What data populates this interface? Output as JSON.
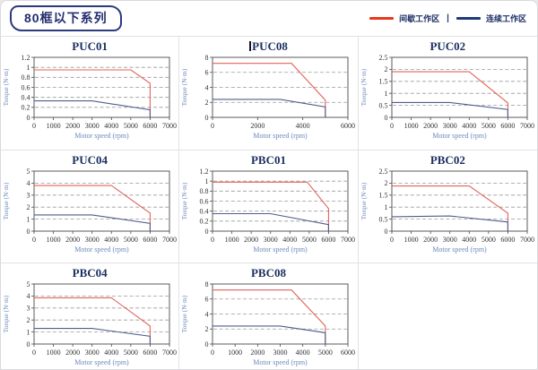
{
  "page": {
    "title": "80框以下系列",
    "legend": {
      "items": [
        {
          "label": "间歇工作区",
          "color": "#e8391d"
        },
        {
          "label": "连续工作区",
          "color": "#1e3a78"
        }
      ],
      "separator": "|"
    }
  },
  "colors": {
    "intermittent_line": "#e2635a",
    "continuous_line": "#4f5d8d",
    "grid_dash": "#9a9a9a",
    "axis_frame": "#4a4a4a",
    "tick_label": "#333333",
    "axis_title": "#6c88bd",
    "chart_title": "#1a2f5e",
    "cell_border": "#e2e2e7"
  },
  "chart_data": [
    {
      "type": "line",
      "title": "PUC01",
      "title_cursor": false,
      "xlabel": "Motor speed (rpm)",
      "ylabel": "Torque (N·m)",
      "xlim": [
        0,
        7000
      ],
      "xticks": [
        0,
        1000,
        2000,
        3000,
        4000,
        5000,
        6000,
        7000
      ],
      "ylim": [
        0,
        1.2
      ],
      "yticks": [
        0,
        0.2,
        0.4,
        0.6,
        0.8,
        1,
        1.2
      ],
      "grid": "horizontal-dashed",
      "legend_position": "none",
      "series": [
        {
          "name": "间歇工作区",
          "role": "intermittent",
          "points": [
            [
              0,
              0.95
            ],
            [
              5000,
              0.95
            ],
            [
              6000,
              0.68
            ],
            [
              6000,
              0
            ]
          ]
        },
        {
          "name": "连续工作区",
          "role": "continuous",
          "points": [
            [
              0,
              0.33
            ],
            [
              3000,
              0.33
            ],
            [
              6000,
              0.15
            ],
            [
              6000,
              0
            ]
          ]
        }
      ]
    },
    {
      "type": "line",
      "title": "PUC08",
      "title_cursor": true,
      "xlabel": "Motor speed (rpm)",
      "ylabel": "Torque (N·m)",
      "xlim": [
        0,
        6000
      ],
      "xticks": [
        0,
        2000,
        4000,
        6000
      ],
      "ylim": [
        0,
        8
      ],
      "yticks": [
        0,
        2,
        4,
        6,
        8
      ],
      "grid": "horizontal-dashed",
      "legend_position": "none",
      "series": [
        {
          "name": "间歇工作区",
          "role": "intermittent",
          "points": [
            [
              0,
              7.2
            ],
            [
              3500,
              7.2
            ],
            [
              5000,
              2.3
            ],
            [
              5000,
              0
            ]
          ]
        },
        {
          "name": "连续工作区",
          "role": "continuous",
          "points": [
            [
              0,
              2.4
            ],
            [
              3000,
              2.4
            ],
            [
              5000,
              1.4
            ],
            [
              5000,
              0
            ]
          ]
        }
      ]
    },
    {
      "type": "line",
      "title": "PUC02",
      "title_cursor": false,
      "xlabel": "Motor speed (rpm)",
      "ylabel": "Torque (N·m)",
      "xlim": [
        0,
        7000
      ],
      "xticks": [
        0,
        1000,
        2000,
        3000,
        4000,
        5000,
        6000,
        7000
      ],
      "ylim": [
        0,
        2.5
      ],
      "yticks": [
        0,
        0.5,
        1,
        1.5,
        2,
        2.5
      ],
      "grid": "horizontal-dashed",
      "legend_position": "none",
      "series": [
        {
          "name": "间歇工作区",
          "role": "intermittent",
          "points": [
            [
              0,
              1.9
            ],
            [
              4000,
              1.9
            ],
            [
              6000,
              0.6
            ],
            [
              6000,
              0
            ]
          ]
        },
        {
          "name": "连续工作区",
          "role": "continuous",
          "points": [
            [
              0,
              0.62
            ],
            [
              3000,
              0.62
            ],
            [
              6000,
              0.33
            ],
            [
              6000,
              0
            ]
          ]
        }
      ]
    },
    {
      "type": "line",
      "title": "PUC04",
      "title_cursor": false,
      "xlabel": "Motor speed (rpm)",
      "ylabel": "Torque (N·m)",
      "xlim": [
        0,
        7000
      ],
      "xticks": [
        0,
        1000,
        2000,
        3000,
        4000,
        5000,
        6000,
        7000
      ],
      "ylim": [
        0,
        5
      ],
      "yticks": [
        0,
        1,
        2,
        3,
        4,
        5
      ],
      "grid": "horizontal-dashed",
      "legend_position": "none",
      "series": [
        {
          "name": "间歇工作区",
          "role": "intermittent",
          "points": [
            [
              0,
              3.8
            ],
            [
              4000,
              3.8
            ],
            [
              6000,
              1.5
            ],
            [
              6000,
              0
            ]
          ]
        },
        {
          "name": "连续工作区",
          "role": "continuous",
          "points": [
            [
              0,
              1.35
            ],
            [
              3000,
              1.35
            ],
            [
              6000,
              0.65
            ],
            [
              6000,
              0
            ]
          ]
        }
      ]
    },
    {
      "type": "line",
      "title": "PBC01",
      "title_cursor": false,
      "xlabel": "Motor speed (rpm)",
      "ylabel": "Torque (N·m)",
      "xlim": [
        0,
        7000
      ],
      "xticks": [
        0,
        1000,
        2000,
        3000,
        4000,
        5000,
        6000,
        7000
      ],
      "ylim": [
        0,
        1.2
      ],
      "yticks": [
        0,
        0.2,
        0.4,
        0.6,
        0.8,
        1,
        1.2
      ],
      "grid": "horizontal-dashed",
      "legend_position": "none",
      "series": [
        {
          "name": "间歇工作区",
          "role": "intermittent",
          "points": [
            [
              0,
              0.98
            ],
            [
              4900,
              0.98
            ],
            [
              6000,
              0.45
            ],
            [
              6000,
              0
            ]
          ]
        },
        {
          "name": "连续工作区",
          "role": "continuous",
          "points": [
            [
              0,
              0.35
            ],
            [
              3000,
              0.35
            ],
            [
              6000,
              0.13
            ],
            [
              6000,
              0
            ]
          ]
        }
      ]
    },
    {
      "type": "line",
      "title": "PBC02",
      "title_cursor": false,
      "xlabel": "Motor speed (rpm)",
      "ylabel": "Torque (N·m)",
      "xlim": [
        0,
        7000
      ],
      "xticks": [
        0,
        1000,
        2000,
        3000,
        4000,
        5000,
        6000,
        7000
      ],
      "ylim": [
        0,
        2.5
      ],
      "yticks": [
        0,
        0.5,
        1,
        1.5,
        2,
        2.5
      ],
      "grid": "horizontal-dashed",
      "legend_position": "none",
      "series": [
        {
          "name": "间歇工作区",
          "role": "intermittent",
          "points": [
            [
              0,
              1.88
            ],
            [
              4000,
              1.88
            ],
            [
              6000,
              0.75
            ],
            [
              6000,
              0
            ]
          ]
        },
        {
          "name": "连续工作区",
          "role": "continuous",
          "points": [
            [
              0,
              0.6
            ],
            [
              3000,
              0.63
            ],
            [
              6000,
              0.38
            ],
            [
              6000,
              0
            ]
          ]
        }
      ]
    },
    {
      "type": "line",
      "title": "PBC04",
      "title_cursor": false,
      "xlabel": "Motor speed (rpm)",
      "ylabel": "Torque (N·m)",
      "xlim": [
        0,
        7000
      ],
      "xticks": [
        0,
        1000,
        2000,
        3000,
        4000,
        5000,
        6000,
        7000
      ],
      "ylim": [
        0,
        5
      ],
      "yticks": [
        0,
        1,
        2,
        3,
        4,
        5
      ],
      "grid": "horizontal-dashed",
      "legend_position": "none",
      "series": [
        {
          "name": "间歇工作区",
          "role": "intermittent",
          "points": [
            [
              0,
              3.85
            ],
            [
              4000,
              3.85
            ],
            [
              6000,
              1.5
            ],
            [
              6000,
              0
            ]
          ]
        },
        {
          "name": "连续工作区",
          "role": "continuous",
          "points": [
            [
              0,
              1.3
            ],
            [
              3000,
              1.3
            ],
            [
              6000,
              0.65
            ],
            [
              6000,
              0
            ]
          ]
        }
      ]
    },
    {
      "type": "line",
      "title": "PBC08",
      "title_cursor": false,
      "xlabel": "Motor speed (rpm)",
      "ylabel": "Torque (N·m)",
      "xlim": [
        0,
        6000
      ],
      "xticks": [
        0,
        1000,
        2000,
        3000,
        4000,
        5000,
        6000
      ],
      "ylim": [
        0,
        8
      ],
      "yticks": [
        0,
        2,
        4,
        6,
        8
      ],
      "grid": "horizontal-dashed",
      "legend_position": "none",
      "series": [
        {
          "name": "间歇工作区",
          "role": "intermittent",
          "points": [
            [
              0,
              7.2
            ],
            [
              3500,
              7.2
            ],
            [
              5000,
              2.4
            ],
            [
              5000,
              0
            ]
          ]
        },
        {
          "name": "连续工作区",
          "role": "continuous",
          "points": [
            [
              0,
              2.4
            ],
            [
              3000,
              2.4
            ],
            [
              5000,
              1.5
            ],
            [
              5000,
              0
            ]
          ]
        }
      ]
    }
  ]
}
